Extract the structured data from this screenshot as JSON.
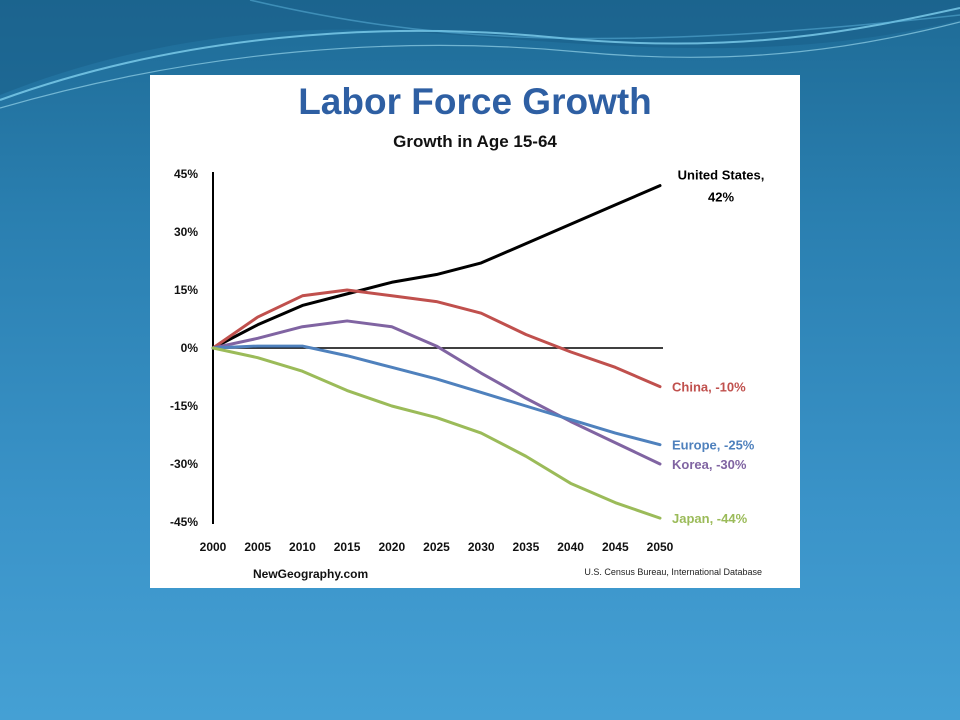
{
  "colors": {
    "title": "#2e5fa3",
    "United States": "#000000",
    "China": "#c0504d",
    "Korea": "#8064a2",
    "Europe": "#4f81bd",
    "Japan": "#9bbb59"
  },
  "footer": {
    "site": "NewGeography.com",
    "source": "U.S. Census Bureau, International Database"
  },
  "chart_data": {
    "type": "line",
    "title": "Labor Force Growth",
    "subtitle": "Growth in Age 15-64",
    "x": [
      2000,
      2005,
      2010,
      2015,
      2020,
      2025,
      2030,
      2035,
      2040,
      2045,
      2050
    ],
    "x_tick_labels": [
      "2000",
      "2005",
      "2010",
      "2015",
      "2020",
      "2025",
      "2030",
      "2035",
      "2040",
      "2045",
      "2050"
    ],
    "y_ticks": [
      45,
      30,
      15,
      0,
      -15,
      -30,
      -45
    ],
    "y_tick_labels": [
      "45%",
      "30%",
      "15%",
      "0%",
      "-15%",
      "-30%",
      "-45%"
    ],
    "ylim": [
      -45,
      45
    ],
    "grid": false,
    "series": [
      {
        "name": "United States",
        "label": "United States,",
        "label2": "42%",
        "color": "#000000",
        "values": [
          0,
          6,
          11,
          14,
          17,
          19,
          22,
          27,
          32,
          37,
          42
        ]
      },
      {
        "name": "China",
        "label": "China, -10%",
        "color": "#c0504d",
        "values": [
          0,
          8,
          13.5,
          15,
          13.5,
          12,
          9,
          3.5,
          -1,
          -5,
          -10
        ]
      },
      {
        "name": "Korea",
        "label": "Korea, -30%",
        "color": "#8064a2",
        "values": [
          0,
          2.5,
          5.5,
          7,
          5.5,
          0.5,
          -6.5,
          -13,
          -19,
          -24.5,
          -30
        ]
      },
      {
        "name": "Europe",
        "label": "Europe, -25%",
        "color": "#4f81bd",
        "values": [
          0,
          0.5,
          0.5,
          -2,
          -5,
          -8,
          -11.5,
          -15,
          -18.5,
          -22,
          -25
        ]
      },
      {
        "name": "Japan",
        "label": "Japan, -44%",
        "color": "#9bbb59",
        "values": [
          0,
          -2.5,
          -6,
          -11,
          -15,
          -18,
          -22,
          -28,
          -35,
          -40,
          -44
        ]
      }
    ]
  }
}
